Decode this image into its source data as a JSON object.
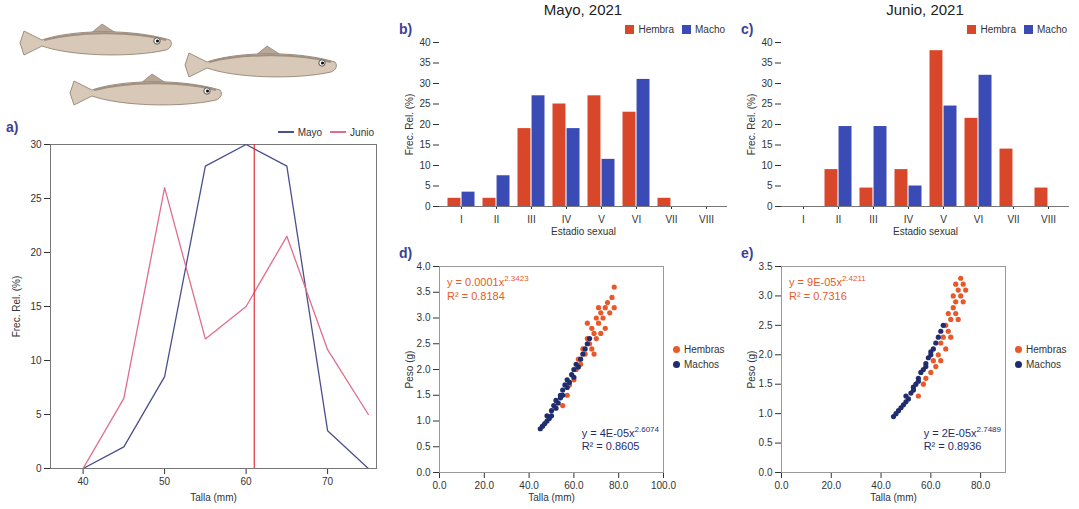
{
  "chart_data": [
    {
      "type": "line",
      "panel_label": "a)",
      "x_label": "Talla (mm)",
      "y_label": "Frec. Rel. (%)",
      "x": [
        40,
        45,
        50,
        55,
        60,
        65,
        70,
        75
      ],
      "series": [
        {
          "name": "Mayo",
          "color": "#4b4f8c",
          "values": [
            0,
            2,
            8.5,
            28,
            30,
            28,
            3.5,
            0
          ]
        },
        {
          "name": "Junio",
          "color": "#e06d8c",
          "values": [
            0,
            6.5,
            26,
            12,
            15,
            21.5,
            11,
            5
          ]
        }
      ],
      "reference_line": {
        "x": 61,
        "color": "#e0303c"
      },
      "xlim": [
        36,
        76
      ],
      "xticks": [
        40,
        50,
        60,
        70
      ],
      "ylim": [
        0,
        30
      ],
      "yticks": [
        0,
        5,
        10,
        15,
        20,
        25,
        30
      ],
      "legend": "top-right",
      "grid": false
    },
    {
      "type": "bar",
      "panel_label": "b)",
      "title": "Mayo, 2021",
      "x_label": "Estadio sexual",
      "y_label": "Frec. Rel. (%)",
      "categories": [
        "I",
        "II",
        "III",
        "IV",
        "V",
        "VI",
        "VII",
        "VIII"
      ],
      "series": [
        {
          "name": "Hembra",
          "color": "#d9472b",
          "values": [
            2,
            2,
            19,
            25,
            27,
            23,
            2,
            0
          ]
        },
        {
          "name": "Macho",
          "color": "#3b4bb5",
          "values": [
            3.5,
            7.5,
            27,
            19,
            11.5,
            31,
            0,
            0
          ]
        }
      ],
      "ylim": [
        0,
        40
      ],
      "yticks": [
        0,
        5,
        10,
        15,
        20,
        25,
        30,
        35,
        40
      ],
      "legend": "top-right",
      "grid": false
    },
    {
      "type": "bar",
      "panel_label": "c)",
      "title": "Junio, 2021",
      "x_label": "Estadio sexual",
      "y_label": "Frec. Rel. (%)",
      "categories": [
        "I",
        "II",
        "III",
        "IV",
        "V",
        "VI",
        "VII",
        "VIII"
      ],
      "series": [
        {
          "name": "Hembra",
          "color": "#d9472b",
          "values": [
            0,
            9,
            4.5,
            9,
            38,
            21.5,
            14,
            4.5
          ]
        },
        {
          "name": "Macho",
          "color": "#3b4bb5",
          "values": [
            0,
            19.5,
            19.5,
            5,
            24.5,
            32,
            0,
            0
          ]
        }
      ],
      "ylim": [
        0,
        40
      ],
      "yticks": [
        0,
        5,
        10,
        15,
        20,
        25,
        30,
        35,
        40
      ],
      "legend": "top-right",
      "grid": false
    },
    {
      "type": "scatter",
      "panel_label": "d)",
      "x_label": "Talla (mm)",
      "y_label": "Peso (g)",
      "series": [
        {
          "name": "Hembras",
          "color": "#e8592a",
          "marker": "circle",
          "x": [
            55,
            57,
            58,
            60,
            61,
            62,
            63,
            64,
            65,
            66,
            67,
            68,
            68,
            69,
            70,
            70,
            71,
            72,
            72,
            73,
            74,
            74,
            75,
            76,
            77,
            78,
            78,
            66,
            71,
            69
          ],
          "values": [
            1.3,
            1.5,
            1.7,
            1.8,
            2.0,
            2.2,
            2.1,
            2.4,
            2.3,
            2.6,
            2.5,
            2.8,
            2.4,
            2.7,
            3.0,
            2.6,
            2.9,
            3.1,
            2.7,
            3.0,
            3.2,
            2.8,
            3.3,
            3.1,
            3.4,
            3.6,
            3.2,
            2.9,
            3.2,
            2.3
          ],
          "fit": {
            "equation": "y = 0.0001x",
            "exponent": "2.3423",
            "r2": "R² = 0.8184"
          }
        },
        {
          "name": "Machos",
          "color": "#1f2d6e",
          "marker": "circle",
          "x": [
            45,
            46,
            47,
            48,
            48,
            49,
            50,
            50,
            51,
            52,
            52,
            53,
            54,
            54,
            55,
            55,
            56,
            57,
            57,
            58,
            59,
            60,
            60,
            61,
            62,
            63,
            64,
            65,
            66,
            67
          ],
          "values": [
            0.85,
            0.9,
            0.95,
            1.0,
            1.1,
            1.05,
            1.2,
            1.1,
            1.3,
            1.25,
            1.4,
            1.35,
            1.5,
            1.45,
            1.6,
            1.5,
            1.7,
            1.65,
            1.8,
            1.75,
            1.9,
            2.0,
            1.85,
            2.1,
            2.05,
            2.2,
            2.3,
            2.4,
            2.5,
            2.6
          ],
          "fit": {
            "equation": "y = 4E-05x",
            "exponent": "2.6074",
            "r2": "R² = 0.8605"
          }
        }
      ],
      "xlim": [
        0,
        100
      ],
      "xticks": [
        {
          "value": 0,
          "label": "0.0"
        },
        {
          "value": 20,
          "label": "20.0"
        },
        {
          "value": 40,
          "label": "40.0"
        },
        {
          "value": 60,
          "label": "60.0"
        },
        {
          "value": 80,
          "label": "80.0"
        },
        {
          "value": 100,
          "label": "100.0"
        }
      ],
      "ylim": [
        0,
        4
      ],
      "yticks": [
        {
          "value": 0,
          "label": "0.0"
        },
        {
          "value": 0.5,
          "label": "0.5"
        },
        {
          "value": 1,
          "label": "1.0"
        },
        {
          "value": 1.5,
          "label": "1.5"
        },
        {
          "value": 2,
          "label": "2.0"
        },
        {
          "value": 2.5,
          "label": "2.5"
        },
        {
          "value": 3,
          "label": "3.0"
        },
        {
          "value": 3.5,
          "label": "3.5"
        },
        {
          "value": 4,
          "label": "4.0"
        }
      ],
      "legend": "right",
      "grid": false
    },
    {
      "type": "scatter",
      "panel_label": "e)",
      "x_label": "Talla (mm)",
      "y_label": "Peso (g)",
      "series": [
        {
          "name": "Hembras",
          "color": "#e8592a",
          "marker": "circle",
          "x": [
            55,
            57,
            58,
            60,
            61,
            62,
            63,
            64,
            64,
            65,
            66,
            66,
            67,
            67,
            68,
            68,
            69,
            69,
            70,
            70,
            70,
            71,
            71,
            72,
            72,
            73,
            73,
            74
          ],
          "values": [
            1.3,
            1.5,
            1.6,
            1.7,
            1.9,
            1.8,
            2.0,
            2.2,
            1.9,
            2.3,
            2.1,
            2.5,
            2.4,
            2.7,
            2.6,
            2.3,
            2.8,
            3.0,
            2.7,
            2.9,
            3.2,
            3.1,
            2.6,
            3.3,
            3.0,
            2.9,
            3.2,
            3.1
          ],
          "fit": {
            "equation": "y = 9E-05x",
            "exponent": "2.4211",
            "r2": "R² = 0.7316"
          }
        },
        {
          "name": "Machos",
          "color": "#1f2d6e",
          "marker": "circle",
          "x": [
            45,
            46,
            47,
            48,
            49,
            50,
            50,
            51,
            52,
            53,
            53,
            54,
            55,
            55,
            56,
            57,
            58,
            58,
            59,
            60,
            60,
            61,
            62,
            63,
            64,
            65
          ],
          "values": [
            0.95,
            1.0,
            1.05,
            1.1,
            1.15,
            1.2,
            1.3,
            1.25,
            1.35,
            1.45,
            1.4,
            1.5,
            1.6,
            1.55,
            1.7,
            1.75,
            1.85,
            1.8,
            1.95,
            2.05,
            2.0,
            2.1,
            2.2,
            2.3,
            2.4,
            2.5
          ],
          "fit": {
            "equation": "y = 2E-05x",
            "exponent": "2.7489",
            "r2": "R² = 0.8936"
          }
        }
      ],
      "xlim": [
        0,
        90
      ],
      "xticks": [
        {
          "value": 0,
          "label": "0.0"
        },
        {
          "value": 20,
          "label": "20.0"
        },
        {
          "value": 40,
          "label": "40.0"
        },
        {
          "value": 60,
          "label": "60.0"
        },
        {
          "value": 80,
          "label": "80.0"
        }
      ],
      "ylim": [
        0,
        3.5
      ],
      "yticks": [
        {
          "value": 0,
          "label": "0.0"
        },
        {
          "value": 0.5,
          "label": "0.5"
        },
        {
          "value": 1,
          "label": "1.0"
        },
        {
          "value": 1.5,
          "label": "1.5"
        },
        {
          "value": 2,
          "label": "2.0"
        },
        {
          "value": 2.5,
          "label": "2.5"
        },
        {
          "value": 3,
          "label": "3.0"
        },
        {
          "value": 3.5,
          "label": "3.5"
        }
      ],
      "legend": "right",
      "grid": false
    }
  ]
}
